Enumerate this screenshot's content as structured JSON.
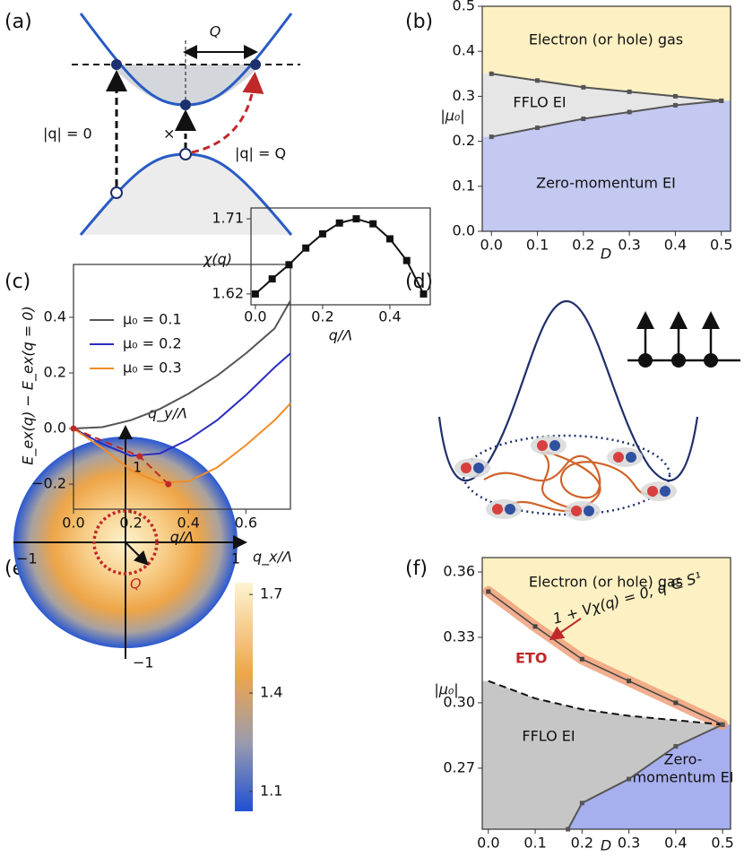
{
  "panel_a": {
    "label": "(a)",
    "q_label": "Q",
    "zero_momentum": "|q| = 0",
    "cross": "×",
    "finite_momentum": "|q| = Q"
  },
  "panel_d": {
    "label": "(d)"
  },
  "panel_e": {
    "label": "(e)",
    "qy_label": "q_y/Λ",
    "qx_label": "q_x/Λ",
    "top_tick": "1",
    "left_tick": "−1",
    "right_tick": "1",
    "bottom_tick": "−1",
    "q_label": "Q",
    "colorbar": {
      "lim": [
        1.04,
        1.736
      ],
      "ticks": [
        1.1,
        1.4,
        1.7
      ]
    }
  },
  "chart_data": [
    {
      "type": "line",
      "panel": "(b)",
      "xlabel": "D",
      "ylabel": "|μ₀|",
      "xlim": [
        -0.02,
        0.52
      ],
      "ylim": [
        0,
        0.5
      ],
      "xticks": [
        {
          "value": 0,
          "label": "0.0"
        },
        0.1,
        0.2,
        0.3,
        0.4,
        0.5
      ],
      "yticks": [
        {
          "value": 0,
          "label": "0.0"
        },
        0.1,
        0.2,
        0.3,
        0.4,
        0.5
      ],
      "series": [
        {
          "color": "#555555",
          "marker": "square",
          "x": [
            0,
            0.1,
            0.2,
            0.3,
            0.4,
            0.5
          ],
          "values": [
            0.35,
            0.335,
            0.32,
            0.31,
            0.3,
            0.29
          ]
        },
        {
          "color": "#555555",
          "marker": "square",
          "x": [
            0,
            0.1,
            0.2,
            0.3,
            0.4,
            0.5
          ],
          "values": [
            0.21,
            0.23,
            0.25,
            0.265,
            0.28,
            0.29
          ]
        }
      ],
      "regions": [
        {
          "label": [
            "Electron (or hole) gas"
          ],
          "color": "#fdf0c2"
        },
        {
          "label": [
            "FFLO EI"
          ],
          "color": "#e6e6e6"
        },
        {
          "label": [
            "Zero-momentum EI"
          ],
          "color": "#c4c9f1"
        }
      ]
    },
    {
      "type": "line",
      "panel": "(c)",
      "xlabel": "q/Λ",
      "ylabel": "E_ex(q) − E_ex(q = 0)",
      "xlim": [
        0,
        0.755
      ],
      "ylim": [
        -0.29,
        0.59
      ],
      "xticks": [
        {
          "value": 0,
          "label": "0.0"
        },
        0.2,
        0.4,
        0.6
      ],
      "yticks": [
        {
          "value": -0.2,
          "label": "−0.2"
        },
        {
          "value": 0,
          "label": "0.0"
        },
        0.2,
        0.4
      ],
      "series": [
        {
          "name": "μ₀ = 0.1",
          "color": "#555555",
          "x": [
            0,
            0.1,
            0.2,
            0.3,
            0.4,
            0.5,
            0.6,
            0.7,
            0.755
          ],
          "values": [
            0,
            0.005,
            0.03,
            0.07,
            0.125,
            0.19,
            0.27,
            0.36,
            0.46
          ]
        },
        {
          "name": "μ₀ = 0.2",
          "color": "#2b2bc0",
          "x": [
            0,
            0.1,
            0.2,
            0.3,
            0.4,
            0.5,
            0.6,
            0.7,
            0.755
          ],
          "values": [
            0,
            -0.055,
            -0.098,
            -0.09,
            -0.04,
            0.03,
            0.12,
            0.22,
            0.27
          ]
        },
        {
          "name": "μ₀ = 0.3",
          "color": "#f28c28",
          "x": [
            0,
            0.1,
            0.2,
            0.3,
            0.4,
            0.5,
            0.6,
            0.7,
            0.755
          ],
          "values": [
            0,
            -0.07,
            -0.15,
            -0.195,
            -0.19,
            -0.14,
            -0.06,
            0.03,
            0.09
          ]
        },
        {
          "color": "#c0282a",
          "dash": true,
          "marker": "dot",
          "x": [
            0,
            0.23,
            0.33
          ],
          "values": [
            0,
            -0.1,
            -0.2
          ]
        }
      ]
    },
    {
      "type": "line",
      "xlabel": "q/Λ",
      "ylabel": "χ(q)",
      "xlim": [
        -0.013,
        0.52
      ],
      "ylim": [
        1.607,
        1.723
      ],
      "xticks": [
        {
          "value": 0,
          "label": "0.0"
        },
        0.2,
        0.4
      ],
      "yticks": [
        1.62,
        1.71
      ],
      "series": [
        {
          "color": "#111111",
          "marker": "square",
          "x": [
            0,
            0.05,
            0.1,
            0.15,
            0.2,
            0.25,
            0.3,
            0.35,
            0.4,
            0.45,
            0.5
          ],
          "values": [
            1.62,
            1.638,
            1.655,
            1.675,
            1.692,
            1.705,
            1.71,
            1.704,
            1.686,
            1.66,
            1.62
          ]
        }
      ]
    },
    {
      "type": "line",
      "panel": "(f)",
      "xlabel": "D",
      "ylabel": "|μ₀|",
      "xlim": [
        -0.013,
        0.517
      ],
      "ylim": [
        0.242,
        0.3666
      ],
      "xticks": [
        {
          "value": 0,
          "label": "0.0"
        },
        0.1,
        0.2,
        0.3,
        0.4,
        0.5
      ],
      "yticks": [
        0.27,
        {
          "value": 0.3,
          "label": "0.30"
        },
        0.33,
        0.36
      ],
      "series": [
        {
          "color": "#444444",
          "halo": "#f0a07c",
          "marker": "square",
          "x": [
            0,
            0.1,
            0.2,
            0.3,
            0.4,
            0.5
          ],
          "values": [
            0.351,
            0.335,
            0.32,
            0.31,
            0.3,
            0.29
          ]
        },
        {
          "color": "#111111",
          "dash": true,
          "x": [
            0,
            0.1,
            0.2,
            0.3,
            0.4,
            0.5
          ],
          "values": [
            0.31,
            0.302,
            0.297,
            0.294,
            0.292,
            0.29
          ]
        },
        {
          "color": "#555555",
          "marker": "square",
          "x": [
            0.17,
            0.2,
            0.3,
            0.4,
            0.5
          ],
          "values": [
            0.242,
            0.254,
            0.265,
            0.28,
            0.29
          ]
        }
      ],
      "regions": [
        {
          "label": [
            "Electron (or hole) gas"
          ],
          "color": "#fdf0c2"
        },
        {
          "color": "#ffffff"
        },
        {
          "label": [
            "FFLO EI"
          ],
          "color": "#c6c6c6"
        },
        {
          "label": [
            "Zero-",
            "momentum EI"
          ],
          "color": "#a7afee"
        }
      ],
      "annotations": [
        {
          "text": "ETO",
          "color": "#c0282a"
        },
        {
          "text": "1 + Vχ(q) = 0, q ∈ S¹"
        }
      ]
    }
  ]
}
